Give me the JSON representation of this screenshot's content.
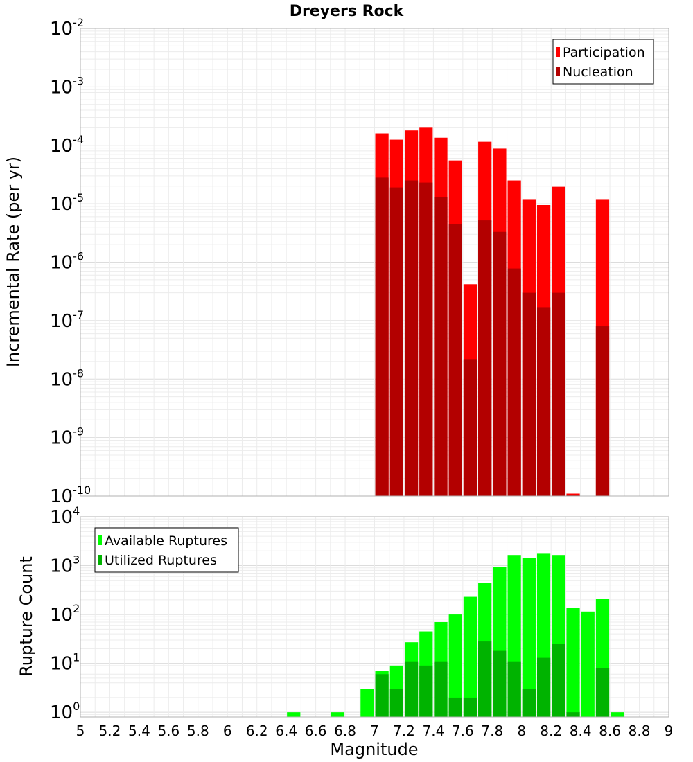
{
  "chart_data": [
    {
      "type": "bar",
      "title": "Dreyers Rock",
      "ylabel": "Incremental Rate (per yr)",
      "xlabel": "",
      "yscale": "log",
      "ylim": [
        1e-10,
        0.01
      ],
      "xlim": [
        5,
        9
      ],
      "grid": true,
      "legend_position": "top-right",
      "bar_width": 0.1,
      "y_tick_labels": [
        "10^-10",
        "10^-9",
        "10^-8",
        "10^-7",
        "10^-6",
        "10^-5",
        "10^-4",
        "10^-3",
        "10^-2"
      ],
      "x": [
        7.05,
        7.15,
        7.25,
        7.35,
        7.45,
        7.55,
        7.65,
        7.75,
        7.85,
        7.95,
        8.05,
        8.15,
        8.25,
        8.35,
        8.55
      ],
      "series": [
        {
          "name": "Participation",
          "color": "#ff0000",
          "values": [
            0.00016,
            0.000125,
            0.00018,
            0.0002,
            0.000135,
            5.5e-05,
            4.2e-07,
            0.000115,
            8.8e-05,
            2.5e-05,
            1.2e-05,
            9.5e-06,
            1.95e-05,
            1.1e-10,
            1.2e-05
          ]
        },
        {
          "name": "Nucleation",
          "color": "#b30000",
          "values": [
            2.8e-05,
            1.9e-05,
            2.5e-05,
            2.3e-05,
            1.3e-05,
            4.5e-06,
            2.2e-08,
            5.2e-06,
            3.3e-06,
            7.8e-07,
            3e-07,
            1.7e-07,
            3e-07,
            1e-10,
            8e-08
          ]
        }
      ]
    },
    {
      "type": "bar",
      "title": "",
      "ylabel": "Rupture Count",
      "xlabel": "Magnitude",
      "yscale": "log",
      "ylim": [
        0.8,
        10000
      ],
      "xlim": [
        5,
        9
      ],
      "grid": true,
      "legend_position": "top-left",
      "bar_width": 0.1,
      "y_tick_labels": [
        "10^0",
        "10^1",
        "10^2",
        "10^3",
        "10^4"
      ],
      "x_ticks": [
        "5",
        "5.2",
        "5.4",
        "5.6",
        "5.8",
        "6",
        "6.2",
        "6.4",
        "6.6",
        "6.8",
        "7",
        "7.2",
        "7.4",
        "7.6",
        "7.8",
        "8",
        "8.2",
        "8.4",
        "8.6",
        "8.8",
        "9"
      ],
      "x": [
        6.45,
        6.75,
        6.95,
        7.05,
        7.15,
        7.25,
        7.35,
        7.45,
        7.55,
        7.65,
        7.75,
        7.85,
        7.95,
        8.05,
        8.15,
        8.25,
        8.35,
        8.45,
        8.55,
        8.65
      ],
      "series": [
        {
          "name": "Available Ruptures",
          "color": "#00ff00",
          "values": [
            1,
            1,
            3,
            7,
            9,
            27,
            45,
            70,
            100,
            230,
            450,
            930,
            1650,
            1450,
            1750,
            1650,
            135,
            115,
            210,
            1
          ]
        },
        {
          "name": "Utilized Ruptures",
          "color": "#00b300",
          "values": [
            0,
            0,
            0,
            6,
            3,
            11,
            9,
            11,
            2,
            2,
            28,
            18,
            11,
            3,
            13,
            25,
            1,
            0,
            8,
            0
          ]
        }
      ]
    }
  ]
}
